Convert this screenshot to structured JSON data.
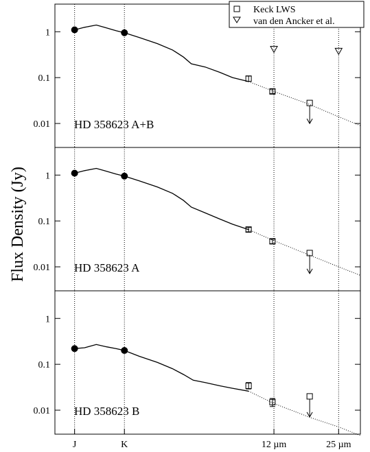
{
  "chart_data": {
    "type": "scatter",
    "ylabel": "Flux Density (Jy)",
    "x_scale": "log",
    "y_scale": "log",
    "xlim_um": [
      1.0,
      32.0
    ],
    "ylim_jy": [
      0.003,
      4.0
    ],
    "x_ticks": [
      {
        "label": "J",
        "x_um": 1.25
      },
      {
        "label": "K",
        "x_um": 2.2
      },
      {
        "label": "12 µm",
        "x_um": 12.0
      },
      {
        "label": "25 µm",
        "x_um": 25.0
      }
    ],
    "y_ticks": [
      {
        "label": "1",
        "y": 1
      },
      {
        "label": "0.1",
        "y": 0.1
      },
      {
        "label": "0.01",
        "y": 0.01
      }
    ],
    "grid": "dotted vertical lines at J, K, 12 µm, 25 µm",
    "legend": {
      "placement": "top-right",
      "entries": [
        {
          "label": "Keck LWS",
          "marker": "square"
        },
        {
          "label": "van den Ancker et al.",
          "marker": "triangle-down"
        }
      ]
    },
    "panels": [
      {
        "label": "HD 358623 A+B",
        "photometry": [
          {
            "x_um": 1.25,
            "y": 1.1
          },
          {
            "x_um": 2.2,
            "y": 0.95
          }
        ],
        "spectrum": [
          [
            1.25,
            1.1
          ],
          [
            1.4,
            1.25
          ],
          [
            1.6,
            1.4
          ],
          [
            1.75,
            1.25
          ],
          [
            2.0,
            1.05
          ],
          [
            2.2,
            0.95
          ],
          [
            2.6,
            0.75
          ],
          [
            3.2,
            0.55
          ],
          [
            3.8,
            0.4
          ],
          [
            4.3,
            0.28
          ],
          [
            4.7,
            0.2
          ],
          [
            5.5,
            0.17
          ],
          [
            6.5,
            0.13
          ],
          [
            7.5,
            0.1
          ],
          [
            9.0,
            0.082
          ]
        ],
        "model": [
          [
            9.0,
            0.082
          ],
          [
            12,
            0.05
          ],
          [
            18,
            0.026
          ],
          [
            25,
            0.014
          ],
          [
            32,
            0.009
          ]
        ],
        "keck_lws": [
          {
            "x_um": 9.0,
            "y": 0.095,
            "err": [
              0.083,
              0.108
            ]
          },
          {
            "x_um": 11.8,
            "y": 0.05,
            "err": [
              0.045,
              0.056
            ]
          },
          {
            "x_um": 18.0,
            "y": 0.028,
            "upper_limit": true
          }
        ],
        "van_den_ancker": [
          {
            "x_um": 12.0,
            "y": 0.42
          },
          {
            "x_um": 25.0,
            "y": 0.38
          }
        ]
      },
      {
        "label": "HD 358623 A",
        "photometry": [
          {
            "x_um": 1.25,
            "y": 1.1
          },
          {
            "x_um": 2.2,
            "y": 0.95
          }
        ],
        "spectrum": [
          [
            1.25,
            1.1
          ],
          [
            1.4,
            1.25
          ],
          [
            1.6,
            1.4
          ],
          [
            1.75,
            1.25
          ],
          [
            2.0,
            1.05
          ],
          [
            2.2,
            0.95
          ],
          [
            2.6,
            0.75
          ],
          [
            3.2,
            0.55
          ],
          [
            3.8,
            0.4
          ],
          [
            4.3,
            0.28
          ],
          [
            4.7,
            0.2
          ],
          [
            5.5,
            0.15
          ],
          [
            6.5,
            0.11
          ],
          [
            7.5,
            0.085
          ],
          [
            9.0,
            0.065
          ]
        ],
        "model": [
          [
            9.0,
            0.065
          ],
          [
            12,
            0.037
          ],
          [
            18,
            0.018
          ],
          [
            25,
            0.01
          ],
          [
            32,
            0.0065
          ]
        ],
        "keck_lws": [
          {
            "x_um": 9.0,
            "y": 0.065,
            "err": [
              0.058,
              0.072
            ]
          },
          {
            "x_um": 11.8,
            "y": 0.036,
            "err": [
              0.032,
              0.04
            ]
          },
          {
            "x_um": 18.0,
            "y": 0.02,
            "upper_limit": true
          }
        ],
        "van_den_ancker": []
      },
      {
        "label": "HD 358623 B",
        "photometry": [
          {
            "x_um": 1.25,
            "y": 0.22
          },
          {
            "x_um": 2.2,
            "y": 0.2
          }
        ],
        "spectrum": [
          [
            1.25,
            0.22
          ],
          [
            1.4,
            0.23
          ],
          [
            1.6,
            0.27
          ],
          [
            1.8,
            0.24
          ],
          [
            2.0,
            0.22
          ],
          [
            2.2,
            0.2
          ],
          [
            2.6,
            0.15
          ],
          [
            3.2,
            0.11
          ],
          [
            3.8,
            0.08
          ],
          [
            4.3,
            0.06
          ],
          [
            4.8,
            0.045
          ],
          [
            5.5,
            0.04
          ],
          [
            6.5,
            0.034
          ],
          [
            7.5,
            0.03
          ],
          [
            9.0,
            0.026
          ]
        ],
        "model": [
          [
            9.0,
            0.026
          ],
          [
            12,
            0.014
          ],
          [
            18,
            0.007
          ],
          [
            25,
            0.0043
          ],
          [
            32,
            0.0028
          ]
        ],
        "keck_lws": [
          {
            "x_um": 9.0,
            "y": 0.034,
            "err": [
              0.029,
              0.04
            ]
          },
          {
            "x_um": 11.8,
            "y": 0.015,
            "err": [
              0.012,
              0.018
            ]
          },
          {
            "x_um": 18.0,
            "y": 0.02,
            "upper_limit": true
          }
        ],
        "van_den_ancker": []
      }
    ]
  }
}
